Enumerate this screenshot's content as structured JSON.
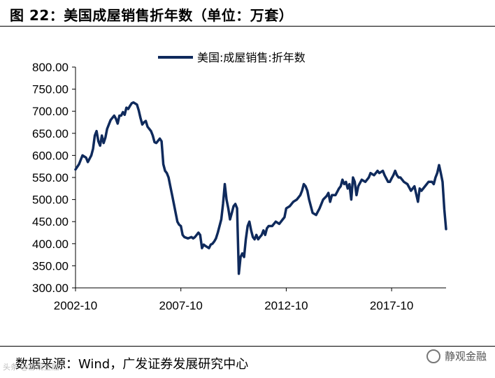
{
  "header": {
    "title": "图 22：美国成屋销售折年数（单位：万套）"
  },
  "footer": {
    "source": "数据来源：Wind，广发证券发展研究中心",
    "watermark": "静观金融",
    "corner_watermark": "头条 @静观金融"
  },
  "colors": {
    "series": "#0f2a5c",
    "axis": "#000000"
  },
  "chart_data": {
    "type": "line",
    "title": "",
    "xlabel": "",
    "ylabel": "",
    "ylim": [
      300,
      800
    ],
    "yticks": [
      300,
      350,
      400,
      450,
      500,
      550,
      600,
      650,
      700,
      750,
      800
    ],
    "ytick_labels": [
      "300.00",
      "350.00",
      "400.00",
      "450.00",
      "500.00",
      "550.00",
      "600.00",
      "650.00",
      "700.00",
      "750.00",
      "800.00"
    ],
    "xtick_labels": [
      "2002-10",
      "2007-10",
      "2012-10",
      "2017-10"
    ],
    "xticks": [
      "2002-10",
      "2007-10",
      "2012-10",
      "2017-10"
    ],
    "xrange": [
      "2002-10",
      "2020-05"
    ],
    "legend": {
      "position": "top-center",
      "entries": [
        "美国:成屋销售:折年数"
      ]
    },
    "grid": false,
    "series": [
      {
        "name": "美国:成屋销售:折年数",
        "points": [
          [
            "2002-10",
            568
          ],
          [
            "2002-12",
            580
          ],
          [
            "2003-02",
            600
          ],
          [
            "2003-04",
            595
          ],
          [
            "2003-05",
            585
          ],
          [
            "2003-07",
            600
          ],
          [
            "2003-08",
            615
          ],
          [
            "2003-09",
            645
          ],
          [
            "2003-10",
            655
          ],
          [
            "2003-11",
            632
          ],
          [
            "2003-12",
            622
          ],
          [
            "2004-01",
            645
          ],
          [
            "2004-02",
            628
          ],
          [
            "2004-03",
            640
          ],
          [
            "2004-04",
            660
          ],
          [
            "2004-06",
            680
          ],
          [
            "2004-08",
            690
          ],
          [
            "2004-09",
            683
          ],
          [
            "2004-10",
            672
          ],
          [
            "2004-11",
            690
          ],
          [
            "2004-12",
            690
          ],
          [
            "2005-01",
            698
          ],
          [
            "2005-02",
            692
          ],
          [
            "2005-03",
            708
          ],
          [
            "2005-04",
            705
          ],
          [
            "2005-05",
            712
          ],
          [
            "2005-06",
            718
          ],
          [
            "2005-07",
            720
          ],
          [
            "2005-09",
            715
          ],
          [
            "2005-10",
            702
          ],
          [
            "2005-11",
            685
          ],
          [
            "2005-12",
            670
          ],
          [
            "2006-01",
            675
          ],
          [
            "2006-02",
            678
          ],
          [
            "2006-03",
            665
          ],
          [
            "2006-05",
            655
          ],
          [
            "2006-06",
            645
          ],
          [
            "2006-07",
            630
          ],
          [
            "2006-08",
            628
          ],
          [
            "2006-09",
            633
          ],
          [
            "2006-10",
            638
          ],
          [
            "2006-11",
            632
          ],
          [
            "2006-12",
            580
          ],
          [
            "2007-01",
            565
          ],
          [
            "2007-02",
            560
          ],
          [
            "2007-03",
            550
          ],
          [
            "2007-04",
            530
          ],
          [
            "2007-05",
            510
          ],
          [
            "2007-06",
            490
          ],
          [
            "2007-07",
            470
          ],
          [
            "2007-08",
            450
          ],
          [
            "2007-09",
            443
          ],
          [
            "2007-10",
            440
          ],
          [
            "2007-11",
            420
          ],
          [
            "2007-12",
            415
          ],
          [
            "2008-02",
            412
          ],
          [
            "2008-04",
            415
          ],
          [
            "2008-05",
            412
          ],
          [
            "2008-06",
            415
          ],
          [
            "2008-07",
            420
          ],
          [
            "2008-08",
            425
          ],
          [
            "2008-09",
            420
          ],
          [
            "2008-10",
            390
          ],
          [
            "2008-11",
            398
          ],
          [
            "2008-12",
            395
          ],
          [
            "2009-02",
            390
          ],
          [
            "2009-03",
            398
          ],
          [
            "2009-04",
            400
          ],
          [
            "2009-05",
            405
          ],
          [
            "2009-06",
            412
          ],
          [
            "2009-07",
            425
          ],
          [
            "2009-08",
            440
          ],
          [
            "2009-09",
            455
          ],
          [
            "2009-10",
            490
          ],
          [
            "2009-11",
            535
          ],
          [
            "2009-12",
            500
          ],
          [
            "2010-01",
            480
          ],
          [
            "2010-02",
            455
          ],
          [
            "2010-03",
            470
          ],
          [
            "2010-04",
            485
          ],
          [
            "2010-05",
            490
          ],
          [
            "2010-06",
            480
          ],
          [
            "2010-07",
            332
          ],
          [
            "2010-08",
            370
          ],
          [
            "2010-09",
            378
          ],
          [
            "2010-10",
            370
          ],
          [
            "2010-11",
            410
          ],
          [
            "2010-12",
            440
          ],
          [
            "2011-01",
            450
          ],
          [
            "2011-02",
            430
          ],
          [
            "2011-03",
            415
          ],
          [
            "2011-04",
            410
          ],
          [
            "2011-05",
            420
          ],
          [
            "2011-06",
            410
          ],
          [
            "2011-07",
            415
          ],
          [
            "2011-08",
            420
          ],
          [
            "2011-09",
            430
          ],
          [
            "2011-10",
            420
          ],
          [
            "2011-11",
            435
          ],
          [
            "2011-12",
            440
          ],
          [
            "2012-02",
            440
          ],
          [
            "2012-04",
            450
          ],
          [
            "2012-06",
            445
          ],
          [
            "2012-08",
            455
          ],
          [
            "2012-09",
            460
          ],
          [
            "2012-10",
            480
          ],
          [
            "2012-12",
            485
          ],
          [
            "2013-02",
            495
          ],
          [
            "2013-04",
            500
          ],
          [
            "2013-06",
            510
          ],
          [
            "2013-07",
            520
          ],
          [
            "2013-08",
            535
          ],
          [
            "2013-09",
            530
          ],
          [
            "2013-10",
            520
          ],
          [
            "2013-11",
            500
          ],
          [
            "2014-01",
            470
          ],
          [
            "2014-03",
            465
          ],
          [
            "2014-05",
            480
          ],
          [
            "2014-07",
            500
          ],
          [
            "2014-09",
            508
          ],
          [
            "2014-10",
            515
          ],
          [
            "2014-11",
            495
          ],
          [
            "2014-12",
            510
          ],
          [
            "2015-02",
            510
          ],
          [
            "2015-04",
            525
          ],
          [
            "2015-05",
            530
          ],
          [
            "2015-06",
            545
          ],
          [
            "2015-07",
            535
          ],
          [
            "2015-08",
            540
          ],
          [
            "2015-09",
            525
          ],
          [
            "2015-10",
            535
          ],
          [
            "2015-11",
            500
          ],
          [
            "2015-12",
            550
          ],
          [
            "2016-01",
            540
          ],
          [
            "2016-02",
            510
          ],
          [
            "2016-03",
            530
          ],
          [
            "2016-05",
            545
          ],
          [
            "2016-07",
            540
          ],
          [
            "2016-09",
            550
          ],
          [
            "2016-10",
            560
          ],
          [
            "2016-12",
            555
          ],
          [
            "2017-02",
            565
          ],
          [
            "2017-03",
            560
          ],
          [
            "2017-05",
            565
          ],
          [
            "2017-06",
            555
          ],
          [
            "2017-08",
            540
          ],
          [
            "2017-09",
            540
          ],
          [
            "2017-10",
            548
          ],
          [
            "2017-11",
            555
          ],
          [
            "2017-12",
            565
          ],
          [
            "2018-01",
            555
          ],
          [
            "2018-02",
            550
          ],
          [
            "2018-03",
            550
          ],
          [
            "2018-05",
            540
          ],
          [
            "2018-07",
            535
          ],
          [
            "2018-09",
            520
          ],
          [
            "2018-11",
            530
          ],
          [
            "2019-01",
            495
          ],
          [
            "2019-02",
            525
          ],
          [
            "2019-03",
            520
          ],
          [
            "2019-05",
            530
          ],
          [
            "2019-07",
            540
          ],
          [
            "2019-09",
            540
          ],
          [
            "2019-10",
            535
          ],
          [
            "2019-11",
            550
          ],
          [
            "2019-12",
            560
          ],
          [
            "2020-01",
            578
          ],
          [
            "2020-02",
            560
          ],
          [
            "2020-03",
            540
          ],
          [
            "2020-04",
            478
          ],
          [
            "2020-05",
            433
          ]
        ]
      }
    ]
  }
}
